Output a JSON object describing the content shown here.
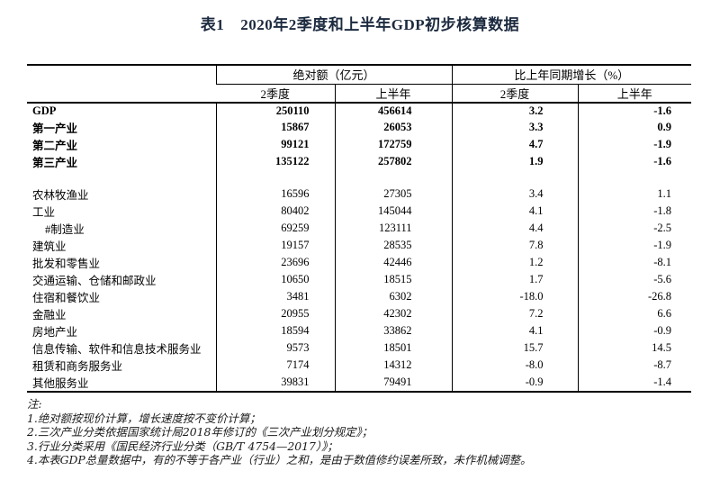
{
  "colors": {
    "title_text": "#1c2a3f",
    "body_text": "#000000",
    "border": "#000000",
    "note_text": "#1a1a1a",
    "background": "#ffffff"
  },
  "title": {
    "prefix": "表1",
    "text": "2020年2季度和上半年GDP初步核算数据"
  },
  "chart_data": {
    "type": "table",
    "title": "表1　2020年2季度和上半年GDP初步核算数据",
    "column_groups": [
      "绝对额（亿元）",
      "比上年同期增长（%）"
    ],
    "columns": [
      "2季度",
      "上半年",
      "2季度",
      "上半年"
    ],
    "rows": [
      {
        "label": "GDP",
        "bold": true,
        "indent": false,
        "values": [
          "250110",
          "456614",
          "3.2",
          "-1.6"
        ]
      },
      {
        "label": "第一产业",
        "bold": true,
        "indent": false,
        "values": [
          "15867",
          "26053",
          "3.3",
          "0.9"
        ]
      },
      {
        "label": "第二产业",
        "bold": true,
        "indent": false,
        "values": [
          "99121",
          "172759",
          "4.7",
          "-1.9"
        ]
      },
      {
        "label": "第三产业",
        "bold": true,
        "indent": false,
        "values": [
          "135122",
          "257802",
          "1.9",
          "-1.6"
        ]
      },
      {
        "spacer": true
      },
      {
        "label": "农林牧渔业",
        "bold": false,
        "indent": false,
        "values": [
          "16596",
          "27305",
          "3.4",
          "1.1"
        ]
      },
      {
        "label": "工业",
        "bold": false,
        "indent": false,
        "values": [
          "80402",
          "145044",
          "4.1",
          "-1.8"
        ]
      },
      {
        "label": "#制造业",
        "bold": false,
        "indent": true,
        "values": [
          "69259",
          "123111",
          "4.4",
          "-2.5"
        ]
      },
      {
        "label": "建筑业",
        "bold": false,
        "indent": false,
        "values": [
          "19157",
          "28535",
          "7.8",
          "-1.9"
        ]
      },
      {
        "label": "批发和零售业",
        "bold": false,
        "indent": false,
        "values": [
          "23696",
          "42446",
          "1.2",
          "-8.1"
        ]
      },
      {
        "label": "交通运输、仓储和邮政业",
        "bold": false,
        "indent": false,
        "values": [
          "10650",
          "18515",
          "1.7",
          "-5.6"
        ]
      },
      {
        "label": "住宿和餐饮业",
        "bold": false,
        "indent": false,
        "values": [
          "3481",
          "6302",
          "-18.0",
          "-26.8"
        ]
      },
      {
        "label": "金融业",
        "bold": false,
        "indent": false,
        "values": [
          "20955",
          "42302",
          "7.2",
          "6.6"
        ]
      },
      {
        "label": "房地产业",
        "bold": false,
        "indent": false,
        "values": [
          "18594",
          "33862",
          "4.1",
          "-0.9"
        ]
      },
      {
        "label": "信息传输、软件和信息技术服务业",
        "bold": false,
        "indent": false,
        "values": [
          "9573",
          "18501",
          "15.7",
          "14.5"
        ]
      },
      {
        "label": "租赁和商务服务业",
        "bold": false,
        "indent": false,
        "values": [
          "7174",
          "14312",
          "-8.0",
          "-8.7"
        ]
      },
      {
        "label": "其他服务业",
        "bold": false,
        "indent": false,
        "values": [
          "39831",
          "79491",
          "-0.9",
          "-1.4"
        ]
      }
    ],
    "notes": {
      "heading": "注:",
      "items": [
        "1.绝对额按现价计算，增长速度按不变价计算；",
        "2.三次产业分类依据国家统计局2018年修订的《三次产业划分规定》；",
        "3.行业分类采用《国民经济行业分类（GB/T 4754—2017）》；",
        "4.本表GDP总量数据中，有的不等于各产业（行业）之和，是由于数值修约误差所致，未作机械调整。"
      ]
    }
  }
}
